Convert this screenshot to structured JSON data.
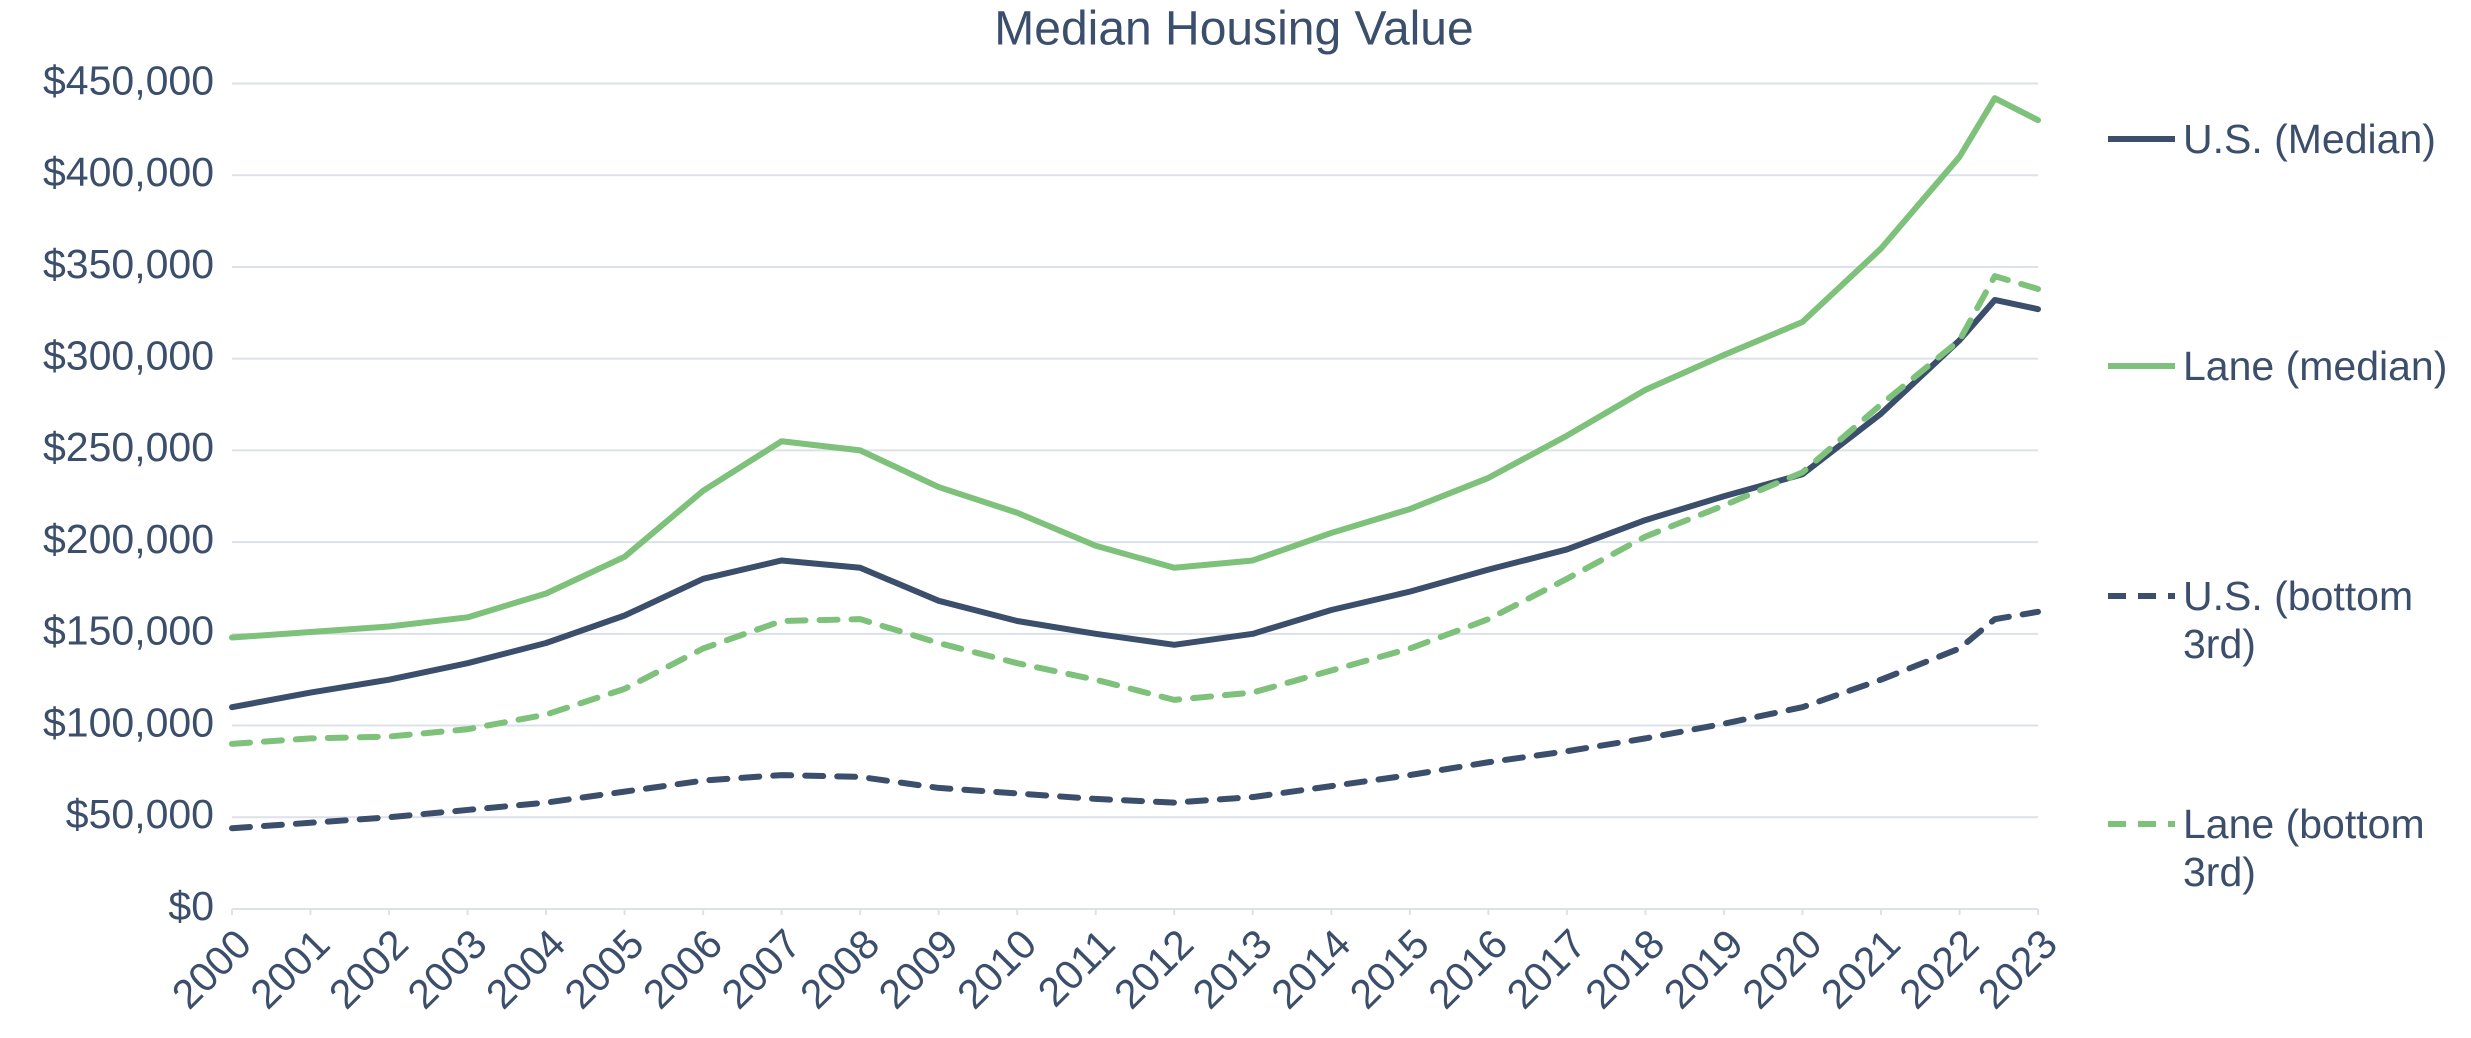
{
  "chart_data": {
    "type": "line",
    "title": "Median Housing Value",
    "x": [
      2000,
      2001,
      2002,
      2003,
      2004,
      2005,
      2006,
      2007,
      2008,
      2009,
      2010,
      2011,
      2012,
      2013,
      2014,
      2015,
      2016,
      2017,
      2018,
      2019,
      2020,
      2021,
      2022,
      2022.45,
      2023
    ],
    "series": [
      {
        "name": "U.S. (Median)",
        "color": "#3b4e6b",
        "dash": false,
        "values": [
          110000,
          118000,
          125000,
          134000,
          145000,
          160000,
          180000,
          190000,
          186000,
          168000,
          157000,
          150000,
          144000,
          150000,
          163000,
          173000,
          185000,
          196000,
          212000,
          225000,
          237000,
          270000,
          310000,
          332000,
          327000
        ]
      },
      {
        "name": "Lane (median)",
        "color": "#7dc17a",
        "dash": false,
        "values": [
          148000,
          151000,
          154000,
          159000,
          172000,
          192000,
          228000,
          255000,
          250000,
          230000,
          216000,
          198000,
          186000,
          190000,
          205000,
          218000,
          235000,
          258000,
          283000,
          302000,
          320000,
          360000,
          410000,
          442000,
          430000
        ]
      },
      {
        "name": "U.S. (bottom 3rd)",
        "color": "#3b4e6b",
        "dash": true,
        "values": [
          44000,
          47000,
          50000,
          54000,
          58000,
          64000,
          70000,
          73000,
          72000,
          66000,
          63000,
          60000,
          58000,
          61000,
          67000,
          73000,
          80000,
          86000,
          93000,
          101000,
          110000,
          125000,
          142000,
          158000,
          162000
        ]
      },
      {
        "name": "Lane (bottom 3rd)",
        "color": "#7dc17a",
        "dash": true,
        "values": [
          90000,
          93000,
          94000,
          98000,
          106000,
          120000,
          142000,
          157000,
          158000,
          145000,
          134000,
          125000,
          114000,
          118000,
          130000,
          142000,
          158000,
          180000,
          203000,
          220000,
          238000,
          275000,
          310000,
          345000,
          338000
        ]
      }
    ],
    "xlim": [
      2000,
      2023
    ],
    "xticks": [
      2000,
      2001,
      2002,
      2003,
      2004,
      2005,
      2006,
      2007,
      2008,
      2009,
      2010,
      2011,
      2012,
      2013,
      2014,
      2015,
      2016,
      2017,
      2018,
      2019,
      2020,
      2021,
      2022,
      2023
    ],
    "ylim": [
      0,
      450000
    ],
    "yticks": [
      {
        "value": 0,
        "label": "$0"
      },
      {
        "value": 50000,
        "label": "$50,000"
      },
      {
        "value": 100000,
        "label": "$100,000"
      },
      {
        "value": 150000,
        "label": "$150,000"
      },
      {
        "value": 200000,
        "label": "$200,000"
      },
      {
        "value": 250000,
        "label": "$250,000"
      },
      {
        "value": 300000,
        "label": "$300,000"
      },
      {
        "value": 350000,
        "label": "$350,000"
      },
      {
        "value": 400000,
        "label": "$400,000"
      },
      {
        "value": 450000,
        "label": "$450,000"
      }
    ],
    "grid": true,
    "legend": "right"
  }
}
